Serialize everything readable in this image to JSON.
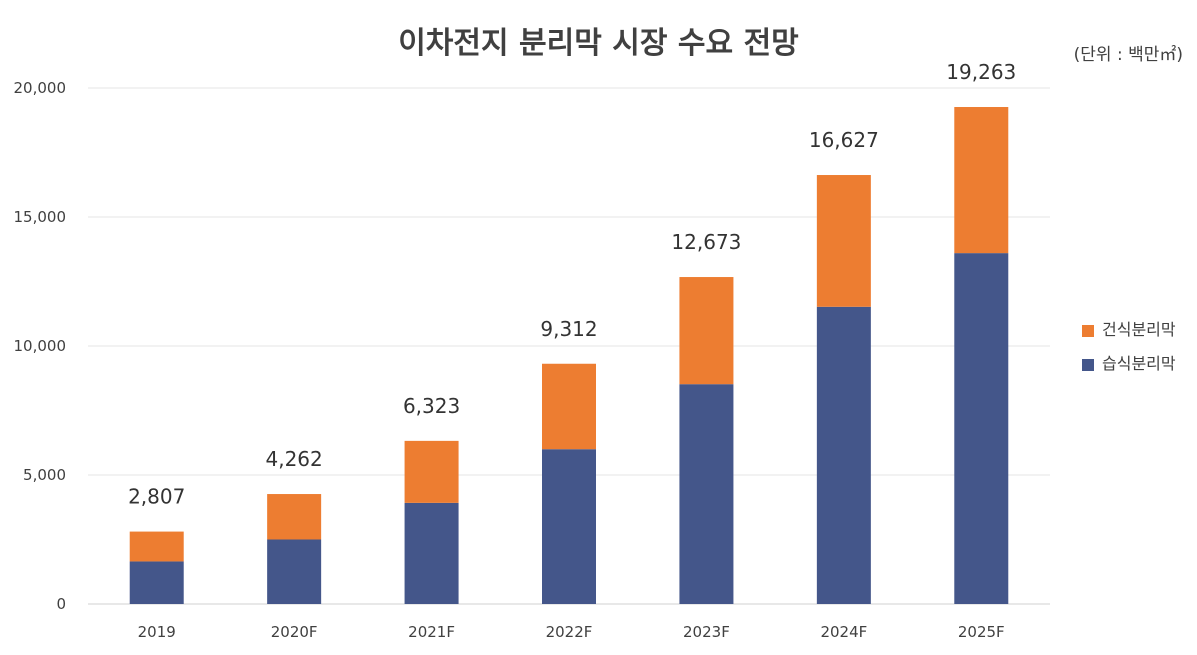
{
  "chart_data": {
    "type": "bar",
    "stacked": true,
    "title": "이차전지 분리막 시장 수요 전망",
    "unit_note": "(단위 : 백만㎡)",
    "categories": [
      "2019",
      "2020F",
      "2021F",
      "2022F",
      "2023F",
      "2024F",
      "2025F"
    ],
    "series": [
      {
        "name": "습식분리막",
        "color": "#44568a",
        "values": [
          1650,
          2500,
          3920,
          6000,
          8520,
          11520,
          13600
        ]
      },
      {
        "name": "건식분리막",
        "color": "#ed7d31",
        "values": [
          1157,
          1762,
          2403,
          3312,
          4153,
          5107,
          5663
        ]
      }
    ],
    "totals": [
      "2,807",
      "4,262",
      "6,323",
      "9,312",
      "12,673",
      "16,627",
      "19,263"
    ],
    "total_values": [
      2807,
      4262,
      6323,
      9312,
      12673,
      16627,
      19263
    ],
    "ylim": [
      0,
      20000
    ],
    "yticks": [
      0,
      5000,
      10000,
      15000,
      20000
    ],
    "ytick_labels": [
      "0",
      "5,000",
      "10,000",
      "15,000",
      "20,000"
    ],
    "grid": true,
    "legend_position": "right",
    "legend": [
      "건식분리막",
      "습식분리막"
    ]
  }
}
